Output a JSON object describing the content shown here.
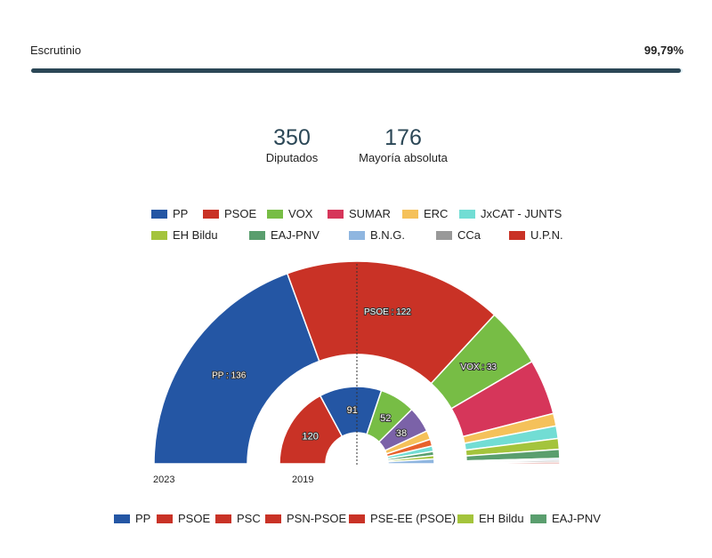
{
  "scrutiny": {
    "label": "Escrutinio",
    "value_text": "99,79%",
    "percent": 99.79,
    "color": "#2b4756"
  },
  "stats": [
    {
      "value": "350",
      "label": "Diputados"
    },
    {
      "value": "176",
      "label": "Mayoría absoluta"
    }
  ],
  "chart_data": {
    "type": "parliament-semicircle",
    "total_seats": 350,
    "rings": [
      {
        "year": "2023",
        "segments": [
          {
            "party": "PP",
            "seats": 136,
            "color": "#2456a4",
            "label": "PP : 136"
          },
          {
            "party": "PSOE",
            "seats": 122,
            "color": "#c93226",
            "label": "PSOE : 122"
          },
          {
            "party": "VOX",
            "seats": 33,
            "color": "#77bd45",
            "label": "VOX : 33"
          },
          {
            "party": "SUMAR",
            "seats": 31,
            "color": "#d6365a",
            "label": ""
          },
          {
            "party": "ERC",
            "seats": 7,
            "color": "#f5c15a",
            "label": ""
          },
          {
            "party": "JxCAT - JUNTS",
            "seats": 7,
            "color": "#72ddd4",
            "label": ""
          },
          {
            "party": "EH Bildu",
            "seats": 6,
            "color": "#a4c43c",
            "label": ""
          },
          {
            "party": "EAJ-PNV",
            "seats": 5,
            "color": "#5a9e6e",
            "label": ""
          },
          {
            "party": "B.N.G.",
            "seats": 1,
            "color": "#8fb6e0",
            "label": ""
          },
          {
            "party": "CCa",
            "seats": 1,
            "color": "#999999",
            "label": ""
          },
          {
            "party": "U.P.N.",
            "seats": 1,
            "color": "#c93226",
            "label": ""
          }
        ]
      },
      {
        "year": "2019",
        "segments": [
          {
            "party": "PSOE",
            "seats": 120,
            "color": "#c93226",
            "label": "120"
          },
          {
            "party": "PP",
            "seats": 91,
            "color": "#2456a4",
            "label": "91"
          },
          {
            "party": "",
            "seats": 52,
            "color": "#77bd45",
            "label": "52"
          },
          {
            "party": "",
            "seats": 38,
            "color": "#7b62a8",
            "label": "38"
          },
          {
            "party": "",
            "seats": 13,
            "color": "#f5c15a",
            "label": ""
          },
          {
            "party": "",
            "seats": 10,
            "color": "#e8612c",
            "label": ""
          },
          {
            "party": "",
            "seats": 8,
            "color": "#72ddd4",
            "label": ""
          },
          {
            "party": "EAJ-PNV",
            "seats": 6,
            "color": "#5a9e6e",
            "label": ""
          },
          {
            "party": "EH Bildu",
            "seats": 5,
            "color": "#a4c43c",
            "label": ""
          },
          {
            "party": "",
            "seats": 7,
            "color": "#8fb6e0",
            "label": ""
          }
        ]
      }
    ],
    "legend_top": [
      {
        "label": "PP",
        "color": "#2456a4"
      },
      {
        "label": "PSOE",
        "color": "#c93226"
      },
      {
        "label": "VOX",
        "color": "#77bd45"
      },
      {
        "label": "SUMAR",
        "color": "#d6365a"
      },
      {
        "label": "ERC",
        "color": "#f5c15a"
      },
      {
        "label": "JxCAT - JUNTS",
        "color": "#72ddd4"
      },
      {
        "label": "EH Bildu",
        "color": "#a4c43c"
      },
      {
        "label": "EAJ-PNV",
        "color": "#5a9e6e"
      },
      {
        "label": "B.N.G.",
        "color": "#8fb6e0"
      },
      {
        "label": "CCa",
        "color": "#999999"
      },
      {
        "label": "U.P.N.",
        "color": "#c93226"
      }
    ],
    "legend_bottom": [
      {
        "label": "PP",
        "color": "#2456a4"
      },
      {
        "label": "PSOE",
        "color": "#c93226"
      },
      {
        "label": "PSC",
        "color": "#c93226"
      },
      {
        "label": "PSN-PSOE",
        "color": "#c93226"
      },
      {
        "label": "PSE-EE (PSOE)",
        "color": "#c93226"
      },
      {
        "label": "EH Bildu",
        "color": "#a4c43c"
      },
      {
        "label": "EAJ-PNV",
        "color": "#5a9e6e"
      }
    ],
    "majority_line": 176
  }
}
